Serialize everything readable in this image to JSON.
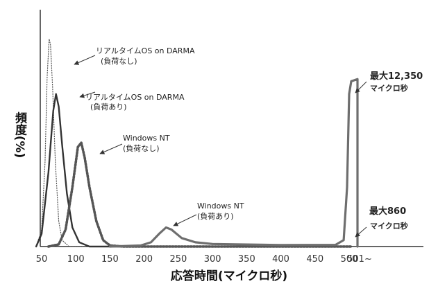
{
  "chart_data": {
    "type": "line",
    "title": "",
    "xlabel": "応答時間(マイクロ秒)",
    "ylabel": "頻度(%)",
    "x_ticks": [
      "50",
      "100",
      "150",
      "200",
      "250",
      "300",
      "350",
      "400",
      "450",
      "500",
      "501~"
    ],
    "grid": false,
    "series": [
      {
        "name": "リアルタイムOS on DARMA\n(負荷なし)",
        "style": "dotted-thin",
        "color": "#555555",
        "points": [
          [
            42,
            0
          ],
          [
            50,
            8
          ],
          [
            55,
            40
          ],
          [
            58,
            80
          ],
          [
            61,
            98
          ],
          [
            63,
            95
          ],
          [
            66,
            75
          ],
          [
            70,
            40
          ],
          [
            75,
            12
          ],
          [
            80,
            3
          ],
          [
            90,
            0
          ],
          [
            501,
            0
          ]
        ]
      },
      {
        "name": "リアルタイムOS on DARMA\n(負荷あり)",
        "style": "solid",
        "color": "#333333",
        "points": [
          [
            42,
            0
          ],
          [
            50,
            6
          ],
          [
            60,
            35
          ],
          [
            67,
            64
          ],
          [
            71,
            72
          ],
          [
            75,
            66
          ],
          [
            80,
            48
          ],
          [
            87,
            25
          ],
          [
            95,
            9
          ],
          [
            105,
            2
          ],
          [
            120,
            0
          ],
          [
            501,
            0
          ]
        ]
      },
      {
        "name": "Windows NT\n(負荷なし)",
        "style": "dotted-bold",
        "color": "#555555",
        "points": [
          [
            60,
            0
          ],
          [
            75,
            1
          ],
          [
            85,
            8
          ],
          [
            95,
            28
          ],
          [
            103,
            47
          ],
          [
            108,
            49
          ],
          [
            113,
            42
          ],
          [
            120,
            28
          ],
          [
            130,
            12
          ],
          [
            140,
            3
          ],
          [
            150,
            0.5
          ],
          [
            170,
            0
          ],
          [
            501,
            0
          ]
        ]
      },
      {
        "name": "Windows NT\n(負荷あり)",
        "style": "solid-bold",
        "color": "#6e6e6e",
        "points": [
          [
            150,
            0
          ],
          [
            195,
            0.5
          ],
          [
            210,
            2
          ],
          [
            222,
            6
          ],
          [
            232,
            9
          ],
          [
            240,
            8
          ],
          [
            255,
            4
          ],
          [
            275,
            2
          ],
          [
            300,
            1.2
          ],
          [
            400,
            0.7
          ],
          [
            480,
            0.8
          ],
          [
            492,
            3
          ],
          [
            497,
            28
          ],
          [
            500,
            72
          ],
          [
            501,
            78
          ],
          [
            504,
            79
          ],
          [
            504,
            0
          ]
        ]
      }
    ],
    "annotations": [
      {
        "text": "最大12,350",
        "subtext": "マイクロ秒"
      },
      {
        "text": "最大860",
        "subtext": "マイクロ秒"
      }
    ]
  }
}
